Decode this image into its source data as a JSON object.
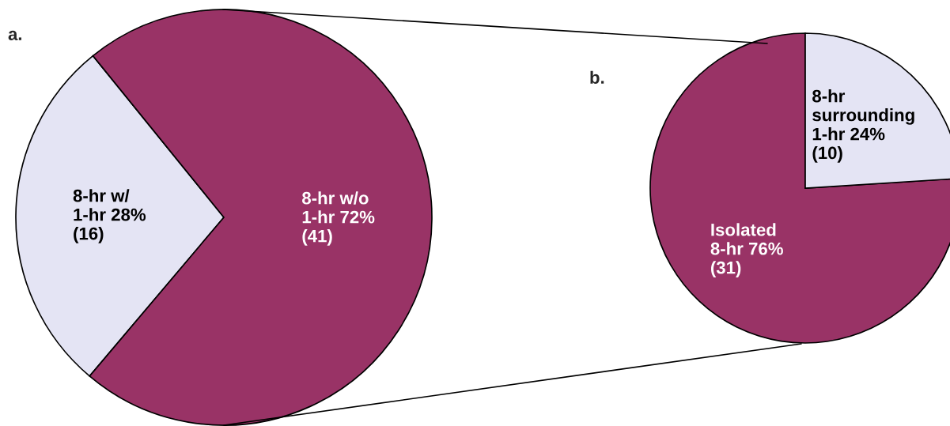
{
  "chart_data": [
    {
      "type": "pie",
      "title": "a.",
      "categories": [
        "8-hr w/\n1-hr 28%\n(16)",
        "8-hr w/o\n1-hr 72%\n(41)"
      ],
      "values": [
        28,
        72
      ],
      "colors": [
        "#e4e4f4",
        "#993366"
      ]
    },
    {
      "type": "pie",
      "title": "b.",
      "categories": [
        "Isolated\n8-hr 76%\n(31)",
        "8-hr\nsurrounding\n1-hr 24%\n(10)"
      ],
      "values": [
        76,
        24
      ],
      "colors": [
        "#993366",
        "#e4e4f4"
      ]
    }
  ]
}
